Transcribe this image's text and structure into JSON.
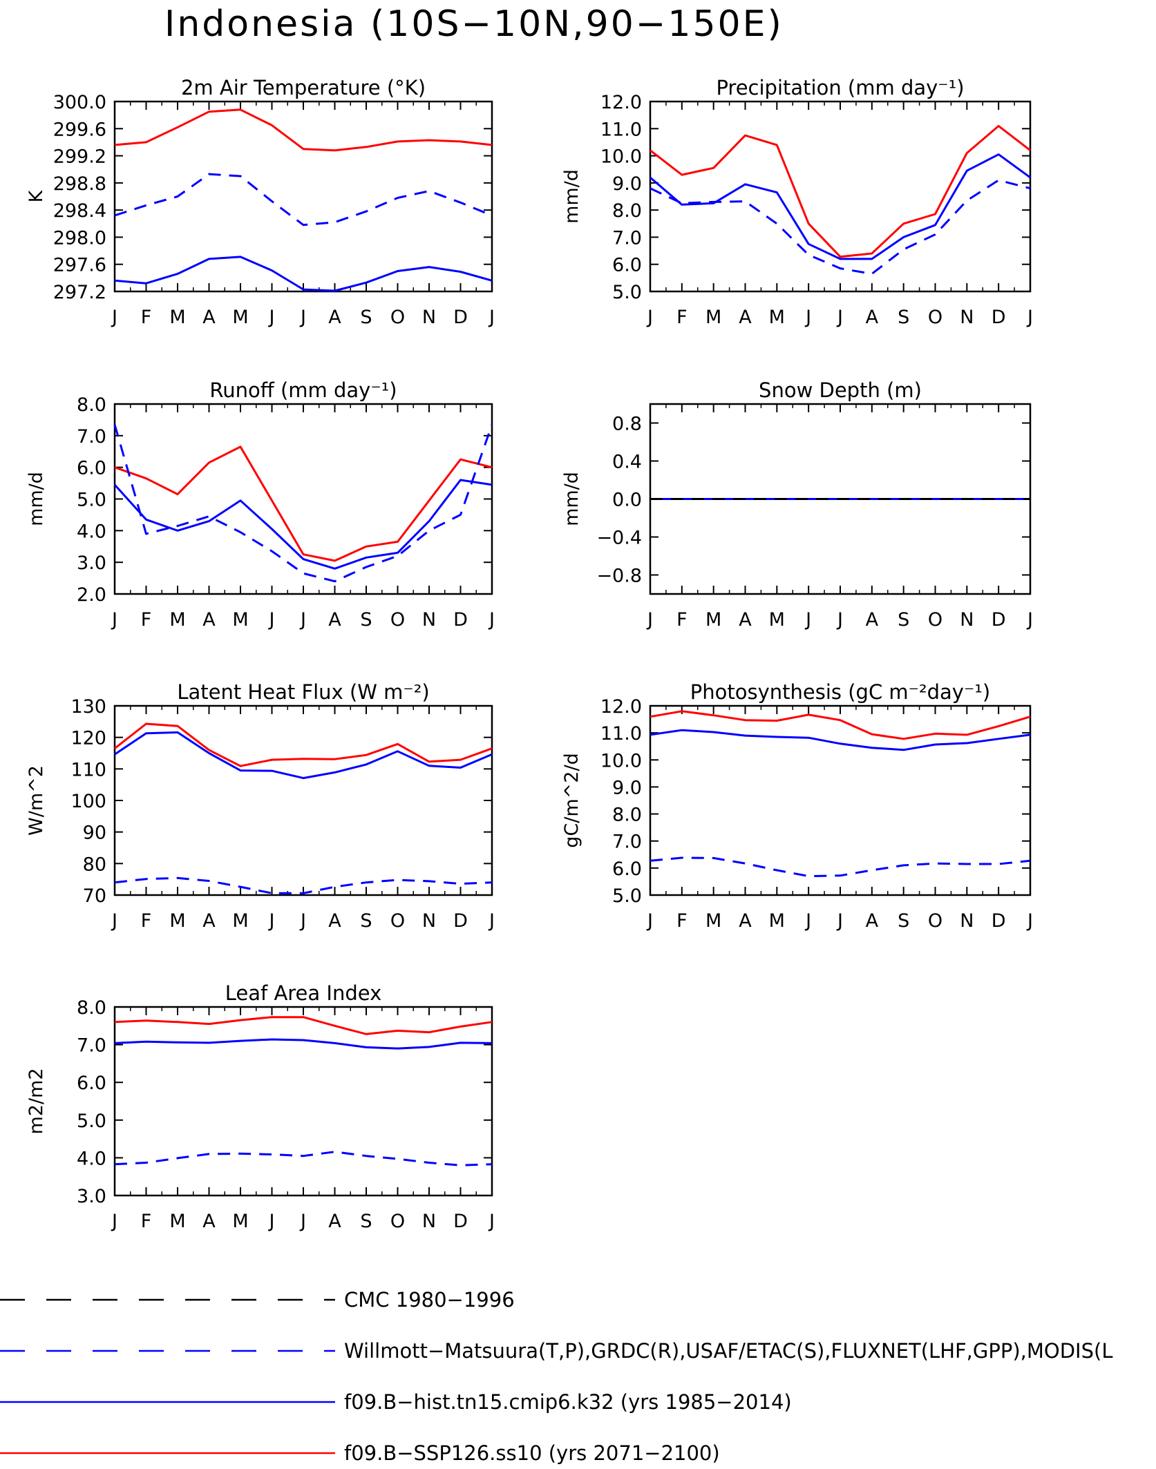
{
  "page_title": "Indonesia (10S−10N,90−150E)",
  "colors": {
    "red": "#ff0000",
    "blue": "#0000ff",
    "black": "#000000"
  },
  "legend": [
    {
      "label": "CMC 1980−1996",
      "color": "#000000",
      "style": "dashed"
    },
    {
      "label": "Willmott−Matsuura(T,P),GRDC(R),USAF/ETAC(S),FLUXNET(LHF,GPP),MODIS(L",
      "color": "#0000ff",
      "style": "dashed"
    },
    {
      "label": "f09.B−hist.tn15.cmip6.k32 (yrs 1985−2014)",
      "color": "#0000ff",
      "style": "solid"
    },
    {
      "label": "f09.B−SSP126.ss10 (yrs 2071−2100)",
      "color": "#ff0000",
      "style": "solid"
    }
  ],
  "chart_data": [
    {
      "type": "line",
      "title": "2m Air Temperature (°K)",
      "ylabel": "K",
      "categories": [
        "J",
        "F",
        "M",
        "A",
        "M",
        "J",
        "J",
        "A",
        "S",
        "O",
        "N",
        "D",
        "J"
      ],
      "ylim": [
        297.2,
        300.0
      ],
      "yticks": [
        "297.2",
        "297.6",
        "298.0",
        "298.4",
        "298.8",
        "299.2",
        "299.6",
        "300.0"
      ],
      "series": [
        {
          "color": "#ff0000",
          "style": "solid",
          "values": [
            299.36,
            299.4,
            299.62,
            299.85,
            299.88,
            299.65,
            299.3,
            299.28,
            299.33,
            299.41,
            299.43,
            299.41,
            299.36
          ]
        },
        {
          "color": "#0000ff",
          "style": "solid",
          "values": [
            297.36,
            297.32,
            297.46,
            297.68,
            297.71,
            297.51,
            297.23,
            297.21,
            297.33,
            297.5,
            297.56,
            297.49,
            297.36
          ]
        },
        {
          "color": "#0000ff",
          "style": "dashed",
          "values": [
            298.32,
            298.47,
            298.6,
            298.93,
            298.9,
            298.53,
            298.18,
            298.22,
            298.38,
            298.58,
            298.68,
            298.51,
            298.32
          ]
        }
      ]
    },
    {
      "type": "line",
      "title": "Precipitation (mm day⁻¹)",
      "ylabel": "mm/d",
      "categories": [
        "J",
        "F",
        "M",
        "A",
        "M",
        "J",
        "J",
        "A",
        "S",
        "O",
        "N",
        "D",
        "J"
      ],
      "ylim": [
        5.0,
        12.0
      ],
      "yticks": [
        "5.0",
        "6.0",
        "7.0",
        "8.0",
        "9.0",
        "10.0",
        "11.0",
        "12.0"
      ],
      "series": [
        {
          "color": "#ff0000",
          "style": "solid",
          "values": [
            10.2,
            9.3,
            9.55,
            10.75,
            10.4,
            7.5,
            6.28,
            6.4,
            7.5,
            7.85,
            10.1,
            11.1,
            10.2
          ]
        },
        {
          "color": "#0000ff",
          "style": "solid",
          "values": [
            9.2,
            8.2,
            8.25,
            8.95,
            8.65,
            6.75,
            6.2,
            6.2,
            7.0,
            7.45,
            9.45,
            10.05,
            9.2
          ]
        },
        {
          "color": "#0000ff",
          "style": "dashed",
          "values": [
            8.8,
            8.25,
            8.3,
            8.32,
            7.5,
            6.35,
            5.85,
            5.65,
            6.55,
            7.1,
            8.35,
            9.1,
            8.8
          ]
        }
      ]
    },
    {
      "type": "line",
      "title": "Runoff (mm day⁻¹)",
      "ylabel": "mm/d",
      "categories": [
        "J",
        "F",
        "M",
        "A",
        "M",
        "J",
        "J",
        "A",
        "S",
        "O",
        "N",
        "D",
        "J"
      ],
      "ylim": [
        2.0,
        8.0
      ],
      "yticks": [
        "2.0",
        "3.0",
        "4.0",
        "5.0",
        "6.0",
        "7.0",
        "8.0"
      ],
      "series": [
        {
          "color": "#ff0000",
          "style": "solid",
          "values": [
            6.0,
            5.65,
            5.15,
            6.15,
            6.65,
            4.95,
            3.25,
            3.05,
            3.5,
            3.65,
            4.95,
            6.25,
            6.0
          ]
        },
        {
          "color": "#0000ff",
          "style": "solid",
          "values": [
            5.45,
            4.35,
            4.0,
            4.3,
            4.95,
            4.05,
            3.1,
            2.8,
            3.15,
            3.3,
            4.3,
            5.6,
            5.45
          ]
        },
        {
          "color": "#0000ff",
          "style": "dashed",
          "values": [
            7.35,
            3.9,
            4.15,
            4.45,
            3.95,
            3.35,
            2.65,
            2.4,
            2.85,
            3.2,
            4.0,
            4.5,
            7.35
          ]
        }
      ]
    },
    {
      "type": "line",
      "title": "Snow Depth (m)",
      "ylabel": "mm/d",
      "categories": [
        "J",
        "F",
        "M",
        "A",
        "M",
        "J",
        "J",
        "A",
        "S",
        "O",
        "N",
        "D",
        "J"
      ],
      "ylim": [
        -1.0,
        1.0
      ],
      "yticks": [
        "−0.8",
        "−0.4",
        "0.0",
        "0.4",
        "0.8"
      ],
      "ytick_values": [
        -0.8,
        -0.4,
        0.0,
        0.4,
        0.8
      ],
      "series": [
        {
          "color": "#0000ff",
          "style": "solid",
          "values": [
            0,
            0,
            0,
            0,
            0,
            0,
            0,
            0,
            0,
            0,
            0,
            0,
            0
          ]
        },
        {
          "color": "#000000",
          "style": "dashed",
          "values": [
            0,
            0,
            0,
            0,
            0,
            0,
            0,
            0,
            0,
            0,
            0,
            0,
            0
          ]
        }
      ]
    },
    {
      "type": "line",
      "title": "Latent Heat Flux (W m⁻²)",
      "ylabel": "W/m^2",
      "categories": [
        "J",
        "F",
        "M",
        "A",
        "M",
        "J",
        "J",
        "A",
        "S",
        "O",
        "N",
        "D",
        "J"
      ],
      "ylim": [
        70,
        130
      ],
      "yticks": [
        "70",
        "80",
        "90",
        "100",
        "110",
        "120",
        "130"
      ],
      "series": [
        {
          "color": "#ff0000",
          "style": "solid",
          "values": [
            116.5,
            124.3,
            123.6,
            116.0,
            110.9,
            112.9,
            113.2,
            113.1,
            114.4,
            117.9,
            112.3,
            112.9,
            116.5
          ]
        },
        {
          "color": "#0000ff",
          "style": "solid",
          "values": [
            114.6,
            121.3,
            121.6,
            115.0,
            109.5,
            109.4,
            107.1,
            108.9,
            111.4,
            115.6,
            111.0,
            110.4,
            114.6
          ]
        },
        {
          "color": "#0000ff",
          "style": "dashed",
          "values": [
            74.0,
            75.1,
            75.4,
            74.5,
            72.6,
            70.6,
            70.6,
            72.6,
            74.0,
            74.8,
            74.4,
            73.6,
            74.0
          ]
        }
      ]
    },
    {
      "type": "line",
      "title": "Photosynthesis (gC m⁻²day⁻¹)",
      "ylabel": "gC/m^2/d",
      "categories": [
        "J",
        "F",
        "M",
        "A",
        "M",
        "J",
        "J",
        "A",
        "S",
        "O",
        "N",
        "D",
        "J"
      ],
      "ylim": [
        5.0,
        12.0
      ],
      "yticks": [
        "5.0",
        "6.0",
        "7.0",
        "8.0",
        "9.0",
        "10.0",
        "11.0",
        "12.0"
      ],
      "series": [
        {
          "color": "#ff0000",
          "style": "solid",
          "values": [
            11.6,
            11.8,
            11.65,
            11.47,
            11.45,
            11.67,
            11.47,
            10.95,
            10.78,
            10.97,
            10.93,
            11.25,
            11.6
          ]
        },
        {
          "color": "#0000ff",
          "style": "solid",
          "values": [
            10.93,
            11.1,
            11.03,
            10.9,
            10.85,
            10.82,
            10.6,
            10.45,
            10.37,
            10.57,
            10.62,
            10.78,
            10.93
          ]
        },
        {
          "color": "#0000ff",
          "style": "dashed",
          "values": [
            6.27,
            6.38,
            6.37,
            6.17,
            5.92,
            5.7,
            5.72,
            5.92,
            6.1,
            6.17,
            6.15,
            6.15,
            6.27
          ]
        }
      ]
    },
    {
      "type": "line",
      "title": "Leaf Area Index",
      "ylabel": "m2/m2",
      "categories": [
        "J",
        "F",
        "M",
        "A",
        "M",
        "J",
        "J",
        "A",
        "S",
        "O",
        "N",
        "D",
        "J"
      ],
      "ylim": [
        3.0,
        8.0
      ],
      "yticks": [
        "3.0",
        "4.0",
        "5.0",
        "6.0",
        "7.0",
        "8.0"
      ],
      "series": [
        {
          "color": "#ff0000",
          "style": "solid",
          "values": [
            7.6,
            7.64,
            7.6,
            7.55,
            7.65,
            7.73,
            7.73,
            7.5,
            7.28,
            7.37,
            7.33,
            7.48,
            7.6
          ]
        },
        {
          "color": "#0000ff",
          "style": "solid",
          "values": [
            7.04,
            7.08,
            7.06,
            7.05,
            7.1,
            7.14,
            7.12,
            7.04,
            6.93,
            6.9,
            6.94,
            7.05,
            7.04
          ]
        },
        {
          "color": "#0000ff",
          "style": "dashed",
          "values": [
            3.83,
            3.87,
            3.99,
            4.1,
            4.11,
            4.09,
            4.05,
            4.16,
            4.05,
            3.97,
            3.87,
            3.8,
            3.83
          ]
        }
      ]
    }
  ]
}
